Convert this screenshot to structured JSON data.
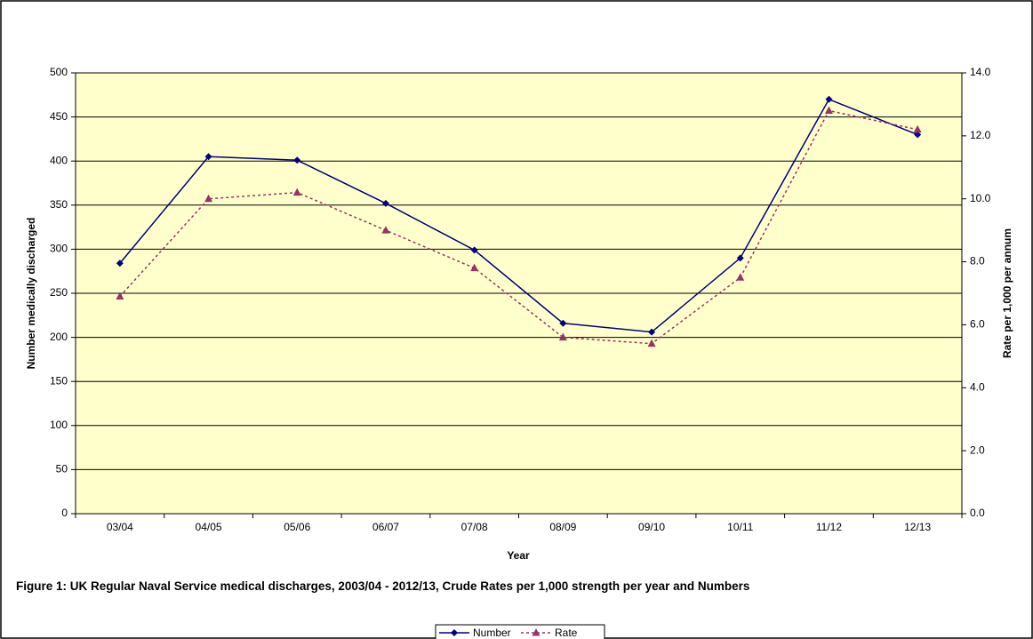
{
  "chart_data": {
    "type": "line",
    "title": "Figure 1: UK Regular Naval Service medical discharges, 2003/04 - 2012/13, Crude Rates per 1,000 strength per year and Numbers",
    "x_label": "Year",
    "y_label": "Number medically discharged",
    "y2_label": "Rate per 1,000 per annum",
    "categories": [
      "03/04",
      "04/05",
      "05/06",
      "06/07",
      "07/08",
      "08/09",
      "09/10",
      "10/11",
      "11/12",
      "12/13"
    ],
    "series": [
      {
        "name": "Number",
        "color": "#000080",
        "marker": "diamond",
        "dashed": false,
        "values": [
          284,
          405,
          401,
          352,
          299,
          216,
          206,
          290,
          470,
          430
        ]
      },
      {
        "name": "Rate",
        "color": "#993366",
        "marker": "triangle",
        "dashed": true,
        "axis": "y2",
        "values": [
          6.9,
          10.0,
          10.2,
          9.0,
          7.8,
          5.6,
          5.4,
          7.5,
          12.8,
          12.2
        ]
      }
    ],
    "ylim": [
      0,
      500
    ],
    "yticks": [
      0,
      50,
      100,
      150,
      200,
      250,
      300,
      350,
      400,
      450,
      500
    ],
    "y2lim": [
      0,
      14
    ],
    "y2ticks": [
      {
        "value": 0,
        "label": "0.0"
      },
      {
        "value": 2,
        "label": "2.0"
      },
      {
        "value": 4,
        "label": "4.0"
      },
      {
        "value": 6,
        "label": "6.0"
      },
      {
        "value": 8,
        "label": "8.0"
      },
      {
        "value": 10,
        "label": "10.0"
      },
      {
        "value": 12,
        "label": "12.0"
      },
      {
        "value": 14,
        "label": "14.0"
      }
    ],
    "grid": true,
    "plot_background": "#ffffcc",
    "legend": "bottom"
  }
}
